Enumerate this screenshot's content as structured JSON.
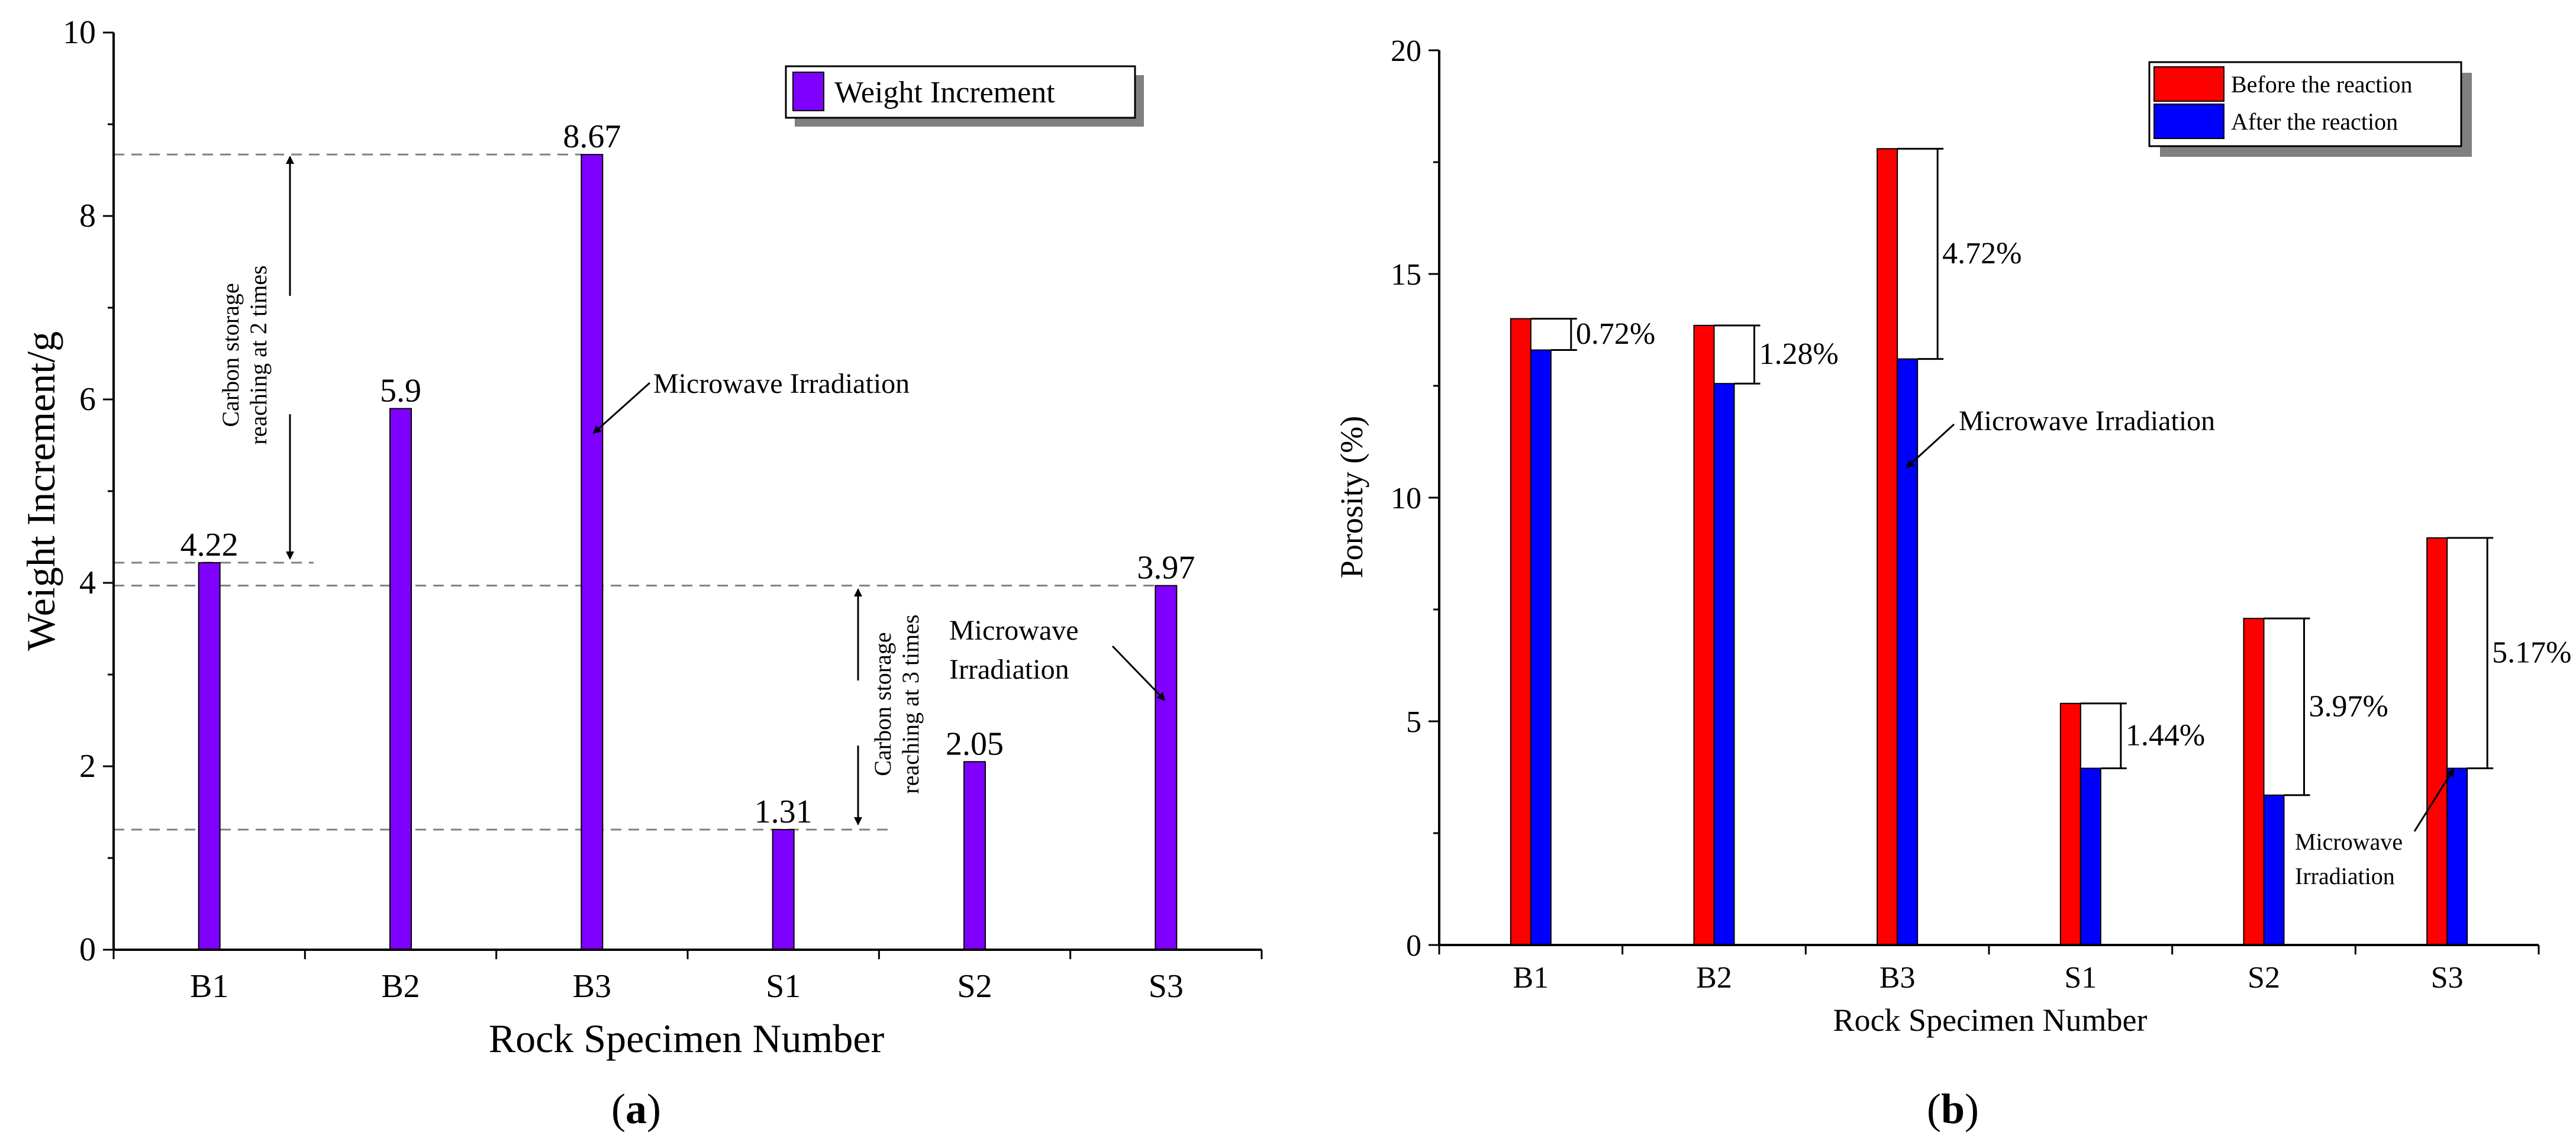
{
  "chart_data": [
    {
      "type": "bar",
      "panel_label": "a",
      "categories": [
        "B1",
        "B2",
        "B3",
        "S1",
        "S2",
        "S3"
      ],
      "series": [
        {
          "name": "Weight Increment",
          "color": "#8000FF",
          "values": [
            4.22,
            5.9,
            8.67,
            1.31,
            2.05,
            3.97
          ]
        }
      ],
      "data_labels": [
        "4.22",
        "5.9",
        "8.67",
        "1.31",
        "2.05",
        "3.97"
      ],
      "title": "",
      "xlabel": "Rock Specimen Number",
      "ylabel": "Weight Increment/g",
      "ylim": [
        0,
        10
      ],
      "yticks": [
        "0",
        "2",
        "4",
        "6",
        "8",
        "10"
      ],
      "legend": "top-right",
      "annotations": {
        "b3": "Microwave Irradiation",
        "s3_line1": "Microwave",
        "s3_line2": "Irradiation",
        "bracket_b_line1": "Carbon storage",
        "bracket_b_line2": "reaching at 2 times",
        "bracket_s_line1": "Carbon storage",
        "bracket_s_line2": "reaching at 3 times"
      }
    },
    {
      "type": "bar",
      "panel_label": "b",
      "categories": [
        "B1",
        "B2",
        "B3",
        "S1",
        "S2",
        "S3"
      ],
      "series": [
        {
          "name": "Before the reaction",
          "color": "#FF0000",
          "values": [
            14.0,
            13.85,
            17.8,
            5.4,
            7.3,
            9.1
          ]
        },
        {
          "name": "After the reaction",
          "color": "#0000FF",
          "values": [
            13.3,
            12.55,
            13.1,
            3.95,
            3.35,
            3.95
          ]
        }
      ],
      "difference_labels": [
        "0.72%",
        "1.28%",
        "4.72%",
        "1.44%",
        "3.97%",
        "5.17%"
      ],
      "title": "",
      "xlabel": "Rock Specimen Number",
      "ylabel": "Porosity (%)",
      "ylim": [
        0,
        20
      ],
      "yticks": [
        "0",
        "5",
        "10",
        "15",
        "20"
      ],
      "legend": "top-right",
      "annotations": {
        "b3": "Microwave Irradiation",
        "s3_line1": "Microwave",
        "s3_line2": "Irradiation"
      }
    }
  ]
}
